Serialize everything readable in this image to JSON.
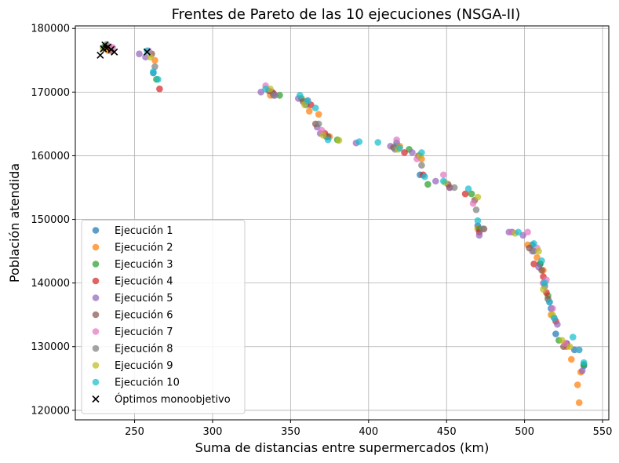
{
  "chart_data": {
    "type": "scatter",
    "title": "Frentes de Pareto de las 10 ejecuciones (NSGA-II)",
    "xlabel": "Suma de distancias entre supermercados (km)",
    "ylabel": "Población atendida",
    "xlim": [
      212,
      554
    ],
    "ylim": [
      118500,
      180400
    ],
    "xticks": [
      250,
      300,
      350,
      400,
      450,
      500,
      550
    ],
    "yticks": [
      120000,
      130000,
      140000,
      150000,
      160000,
      170000,
      180000
    ],
    "grid": true,
    "legend_position": "bottom-left",
    "series": [
      {
        "name": "Ejecución 1",
        "color": "#1f77b4",
        "marker": "circle",
        "points": [
          [
            230,
            177000
          ],
          [
            262,
            173000
          ],
          [
            338,
            170000
          ],
          [
            360,
            168000
          ],
          [
            373,
            163000
          ],
          [
            418,
            162000
          ],
          [
            433,
            157000
          ],
          [
            452,
            155000
          ],
          [
            470,
            149000
          ],
          [
            492,
            148000
          ],
          [
            505,
            146000
          ],
          [
            510,
            143000
          ],
          [
            517,
            136000
          ],
          [
            520,
            132000
          ],
          [
            532,
            129500
          ],
          [
            538,
            127000
          ]
        ]
      },
      {
        "name": "Ejecución 2",
        "color": "#ff7f0e",
        "marker": "circle",
        "points": [
          [
            233,
            176500
          ],
          [
            263,
            175000
          ],
          [
            337,
            169500
          ],
          [
            362,
            167000
          ],
          [
            368,
            166500
          ],
          [
            375,
            163000
          ],
          [
            420,
            161500
          ],
          [
            434,
            159500
          ],
          [
            452,
            155000
          ],
          [
            470,
            148500
          ],
          [
            502,
            146000
          ],
          [
            508,
            144000
          ],
          [
            512,
            142000
          ],
          [
            517,
            135000
          ],
          [
            527,
            130000
          ],
          [
            530,
            128000
          ],
          [
            534,
            124000
          ],
          [
            535,
            121200
          ],
          [
            536,
            126000
          ]
        ]
      },
      {
        "name": "Ejecución 3",
        "color": "#2ca02c",
        "marker": "circle",
        "points": [
          [
            231,
            177200
          ],
          [
            264,
            172000
          ],
          [
            343,
            169500
          ],
          [
            357,
            169000
          ],
          [
            380,
            162500
          ],
          [
            426,
            161000
          ],
          [
            438,
            155500
          ],
          [
            466,
            154000
          ],
          [
            471,
            148500
          ],
          [
            510,
            143000
          ],
          [
            515,
            138000
          ],
          [
            522,
            131000
          ],
          [
            538,
            127200
          ]
        ]
      },
      {
        "name": "Ejecución 4",
        "color": "#d62728",
        "marker": "circle",
        "points": [
          [
            234,
            177000
          ],
          [
            266,
            170500
          ],
          [
            339,
            169800
          ],
          [
            363,
            168000
          ],
          [
            372,
            163500
          ],
          [
            423,
            160500
          ],
          [
            435,
            157000
          ],
          [
            462,
            154000
          ],
          [
            471,
            148000
          ],
          [
            506,
            143000
          ],
          [
            512,
            141000
          ],
          [
            514,
            138500
          ],
          [
            520,
            134000
          ],
          [
            527,
            130500
          ]
        ]
      },
      {
        "name": "Ejecución 5",
        "color": "#9467bd",
        "marker": "circle",
        "points": [
          [
            253,
            176000
          ],
          [
            257,
            175500
          ],
          [
            331,
            170000
          ],
          [
            340,
            169500
          ],
          [
            355,
            169000
          ],
          [
            367,
            164500
          ],
          [
            369,
            163500
          ],
          [
            392,
            162000
          ],
          [
            414,
            161500
          ],
          [
            428,
            160500
          ],
          [
            443,
            156000
          ],
          [
            452,
            155000
          ],
          [
            471,
            147500
          ],
          [
            490,
            148000
          ],
          [
            499,
            147500
          ],
          [
            505,
            145000
          ],
          [
            509,
            142500
          ],
          [
            512,
            140000
          ],
          [
            516,
            137000
          ],
          [
            521,
            133500
          ],
          [
            527,
            130500
          ],
          [
            537,
            126200
          ]
        ]
      },
      {
        "name": "Ejecución 6",
        "color": "#8c564b",
        "marker": "circle",
        "points": [
          [
            235,
            176500
          ],
          [
            261,
            176000
          ],
          [
            336,
            170200
          ],
          [
            358,
            168500
          ],
          [
            366,
            165000
          ],
          [
            374,
            163000
          ],
          [
            416,
            161300
          ],
          [
            432,
            160000
          ],
          [
            451,
            155500
          ],
          [
            468,
            153000
          ],
          [
            474,
            148500
          ],
          [
            503,
            145500
          ],
          [
            511,
            142000
          ],
          [
            515,
            137500
          ],
          [
            525,
            130000
          ]
        ]
      },
      {
        "name": "Ejecución 7",
        "color": "#e377c2",
        "marker": "circle",
        "points": [
          [
            236,
            177000
          ],
          [
            259,
            176500
          ],
          [
            334,
            171000
          ],
          [
            361,
            168700
          ],
          [
            370,
            164000
          ],
          [
            418,
            162500
          ],
          [
            431,
            159500
          ],
          [
            448,
            157000
          ],
          [
            467,
            152500
          ],
          [
            492,
            148000
          ],
          [
            502,
            148000
          ],
          [
            508,
            145500
          ],
          [
            514,
            140500
          ],
          [
            518,
            136000
          ],
          [
            526,
            130500
          ],
          [
            535,
            129500
          ]
        ]
      },
      {
        "name": "Ejecución 8",
        "color": "#7f7f7f",
        "marker": "circle",
        "points": [
          [
            232,
            177500
          ],
          [
            263,
            174000
          ],
          [
            339,
            169500
          ],
          [
            360,
            168500
          ],
          [
            368,
            165000
          ],
          [
            417,
            161000
          ],
          [
            434,
            158500
          ],
          [
            455,
            155000
          ],
          [
            469,
            151500
          ],
          [
            473,
            148500
          ],
          [
            506,
            145000
          ],
          [
            513,
            139500
          ],
          [
            519,
            134500
          ]
        ]
      },
      {
        "name": "Ejecución 9",
        "color": "#bcbd22",
        "marker": "circle",
        "points": [
          [
            230,
            176800
          ],
          [
            260,
            175500
          ],
          [
            337,
            170500
          ],
          [
            359,
            168000
          ],
          [
            371,
            163200
          ],
          [
            381,
            162400
          ],
          [
            419,
            161000
          ],
          [
            433,
            160000
          ],
          [
            449,
            155800
          ],
          [
            470,
            153500
          ],
          [
            494,
            147800
          ],
          [
            509,
            145000
          ],
          [
            512,
            139000
          ],
          [
            518,
            135000
          ],
          [
            524,
            131000
          ],
          [
            529,
            130000
          ]
        ]
      },
      {
        "name": "Ejecución 10",
        "color": "#17becf",
        "marker": "circle",
        "points": [
          [
            258,
            176500
          ],
          [
            262,
            173200
          ],
          [
            265,
            172000
          ],
          [
            334,
            170500
          ],
          [
            356,
            169500
          ],
          [
            361,
            168600
          ],
          [
            366,
            167500
          ],
          [
            374,
            162500
          ],
          [
            394,
            162200
          ],
          [
            406,
            162100
          ],
          [
            420,
            161200
          ],
          [
            434,
            160500
          ],
          [
            436,
            156700
          ],
          [
            448,
            156000
          ],
          [
            464,
            154800
          ],
          [
            470,
            149800
          ],
          [
            496,
            148000
          ],
          [
            506,
            146200
          ],
          [
            511,
            143500
          ],
          [
            513,
            140000
          ],
          [
            516,
            137000
          ],
          [
            519,
            134500
          ],
          [
            531,
            131500
          ],
          [
            535,
            129500
          ],
          [
            538,
            127500
          ]
        ]
      },
      {
        "name": "Óptimos monoobjetivo",
        "color": "#000000",
        "marker": "x",
        "points": [
          [
            228,
            175800
          ],
          [
            230,
            176800
          ],
          [
            231,
            177400
          ],
          [
            232,
            176900
          ],
          [
            233,
            177100
          ],
          [
            235,
            176700
          ],
          [
            237,
            176300
          ],
          [
            258,
            176300
          ]
        ]
      }
    ]
  }
}
